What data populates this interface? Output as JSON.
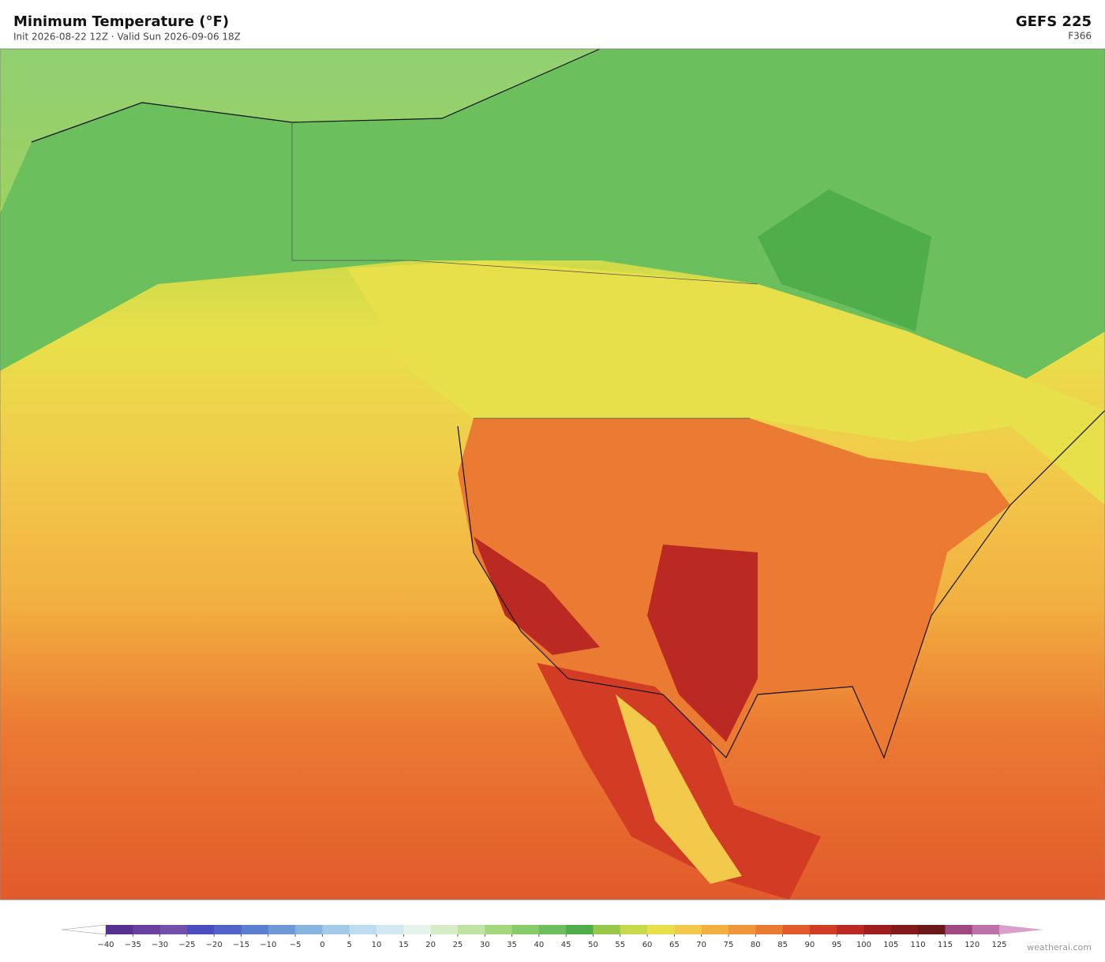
{
  "header": {
    "title": "Minimum Temperature  (°F)",
    "subtitle": "Init 2026-08-22 12Z   ·   Valid Sun 2026-09-06 18Z",
    "model": "GEFS  225",
    "forecast_hour": "F366"
  },
  "colorbar": {
    "ticks": [
      {
        "value": -40,
        "label": "−40"
      },
      {
        "value": -35,
        "label": "−35"
      },
      {
        "value": -30,
        "label": "−30"
      },
      {
        "value": -25,
        "label": "−25"
      },
      {
        "value": -20,
        "label": "−20"
      },
      {
        "value": -15,
        "label": "−15"
      },
      {
        "value": -10,
        "label": "−10"
      },
      {
        "value": -5,
        "label": "−5"
      },
      0,
      5,
      10,
      15,
      20,
      25,
      30,
      35,
      40,
      45,
      50,
      55,
      60,
      65,
      70,
      75,
      80,
      85,
      90,
      95,
      100,
      105,
      110,
      115,
      120,
      125
    ],
    "colors": [
      "#58308f",
      "#6b3fa0",
      "#7150ac",
      "#4b4cc0",
      "#4f63c8",
      "#5b7fd0",
      "#6e99d6",
      "#88b5df",
      "#a3cbe8",
      "#bcdcef",
      "#d3e9f2",
      "#e6f3ec",
      "#d6ecc6",
      "#bfe3a0",
      "#a3d87f",
      "#86cc6a",
      "#6bbf5c",
      "#4fae4a",
      "#98c84a",
      "#c6d94a",
      "#e8e04a",
      "#f2c94a",
      "#f2b040",
      "#ef963a",
      "#eb7a32",
      "#e25a2a",
      "#d33c24",
      "#bb2a22",
      "#9e1e1e",
      "#821a1a",
      "#6b1818",
      "#a04880",
      "#c070a8"
    ],
    "under_color": "#ffffff",
    "over_color": "#d9a0cc"
  },
  "footer": {
    "credit": "weatherai.com"
  }
}
